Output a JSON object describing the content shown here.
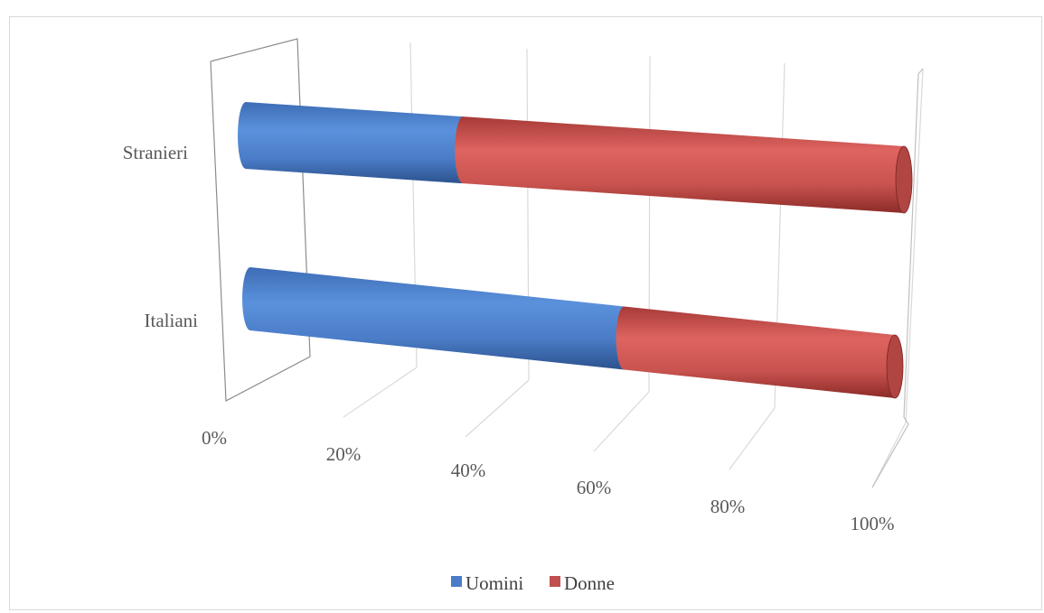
{
  "chart_data": {
    "type": "bar",
    "orientation": "horizontal",
    "stacked": "percent",
    "style": "3d-cylinder",
    "title": "",
    "categories": [
      "Italiani",
      "Stranieri"
    ],
    "series": [
      {
        "name": "Uomini",
        "values": [
          58,
          33
        ],
        "color": "#4a7cc7"
      },
      {
        "name": "Donne",
        "values": [
          42,
          67
        ],
        "color": "#c0504d"
      }
    ],
    "x_ticks": [
      "0%",
      "20%",
      "40%",
      "60%",
      "80%",
      "100%"
    ],
    "xlim": [
      0,
      100
    ],
    "legend": "bottom",
    "grid": true
  }
}
